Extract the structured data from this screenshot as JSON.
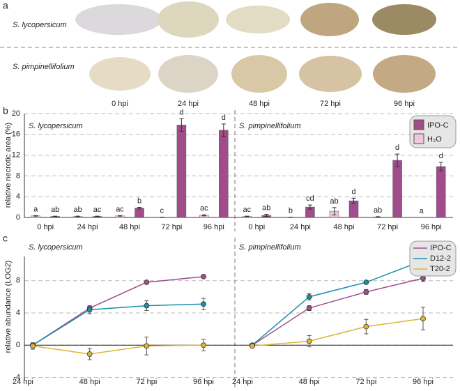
{
  "panel_a": {
    "panel_label": "a",
    "rows": [
      "S. lycopersicum",
      "S. pimpinellifolium"
    ],
    "times": [
      "0 hpi",
      "24 hpi",
      "48 hpi",
      "72 hpi",
      "96 hpi"
    ]
  },
  "chart_data": [
    {
      "type": "bar",
      "panel_label": "b",
      "y_label": "relative necrotic area (%)",
      "panels": [
        "S. lycopersicum",
        "S. pimpinellifolium"
      ],
      "categories": [
        "0 hpi",
        "24 hpi",
        "48 hpi",
        "72 hpi",
        "96 hpi",
        "0 hpi",
        "24 hpi",
        "48 hpi",
        "72 hpi",
        "96 hpi"
      ],
      "series": [
        {
          "name": "IPO-C",
          "color": "#a24d8b",
          "values": [
            0.2,
            0.2,
            1.8,
            17.8,
            16.8,
            0.4,
            2.0,
            3.2,
            11.0,
            9.8
          ],
          "errors": [
            0.05,
            0.05,
            0.15,
            1.2,
            1.2,
            0.2,
            0.4,
            0.5,
            1.2,
            0.8
          ],
          "letters": [
            "ab",
            "ac",
            "b",
            "d",
            "d",
            "ab",
            "cd",
            "d",
            "d",
            "d"
          ]
        },
        {
          "name": "H₂O",
          "color": "#eec7dc",
          "values": [
            0.3,
            0.2,
            0.3,
            0.05,
            0.4,
            0.2,
            0.05,
            1.2,
            0.1,
            0
          ],
          "errors": [
            0.05,
            0.05,
            0.05,
            0.02,
            0.1,
            0.05,
            0.02,
            0.7,
            0.05,
            0
          ],
          "letters": [
            "a",
            "ab",
            "ac",
            "c",
            "ac",
            "ac",
            "b",
            "ab",
            "ab",
            "a"
          ]
        }
      ],
      "ylim": [
        0,
        20
      ],
      "yticks": [
        0,
        4,
        8,
        12,
        16,
        20
      ],
      "grid": true
    },
    {
      "type": "line",
      "panel_label": "c",
      "y_label": "relative abundance (LOG2)",
      "panels": [
        "S. lycopersicum",
        "S. pimpinellifolium"
      ],
      "categories": [
        "24 hpi",
        "48 hpi",
        "72 hpi",
        "96 hpi",
        "24 hpi",
        "48 hpi",
        "72 hpi",
        "96 hpi"
      ],
      "series": [
        {
          "name": "IPO-C",
          "color": "#a04f8c",
          "values": [
            0,
            4.6,
            7.8,
            8.5,
            0,
            4.6,
            6.6,
            8.3
          ],
          "errors": [
            0.2,
            0.2,
            0.1,
            0.1,
            0.2,
            0.3,
            0.3,
            0.4
          ]
        },
        {
          "name": "D12-2",
          "color": "#1c8fa8",
          "values": [
            0,
            4.4,
            4.9,
            5.1,
            0,
            6.0,
            7.8,
            10.5
          ],
          "errors": [
            0.2,
            0.5,
            0.6,
            0.7,
            0.2,
            0.4,
            0.2,
            0.4
          ]
        },
        {
          "name": "T20-2",
          "color": "#e0b532",
          "values": [
            -0.1,
            -1.1,
            -0.1,
            0.0,
            -0.1,
            0.5,
            2.3,
            3.3
          ],
          "errors": [
            0.4,
            0.7,
            1.1,
            0.7,
            0.2,
            0.7,
            0.9,
            1.4
          ]
        }
      ],
      "ylim": [
        -4.3,
        11
      ],
      "yticks": [
        -4,
        0,
        4,
        8
      ],
      "grid": true
    }
  ]
}
